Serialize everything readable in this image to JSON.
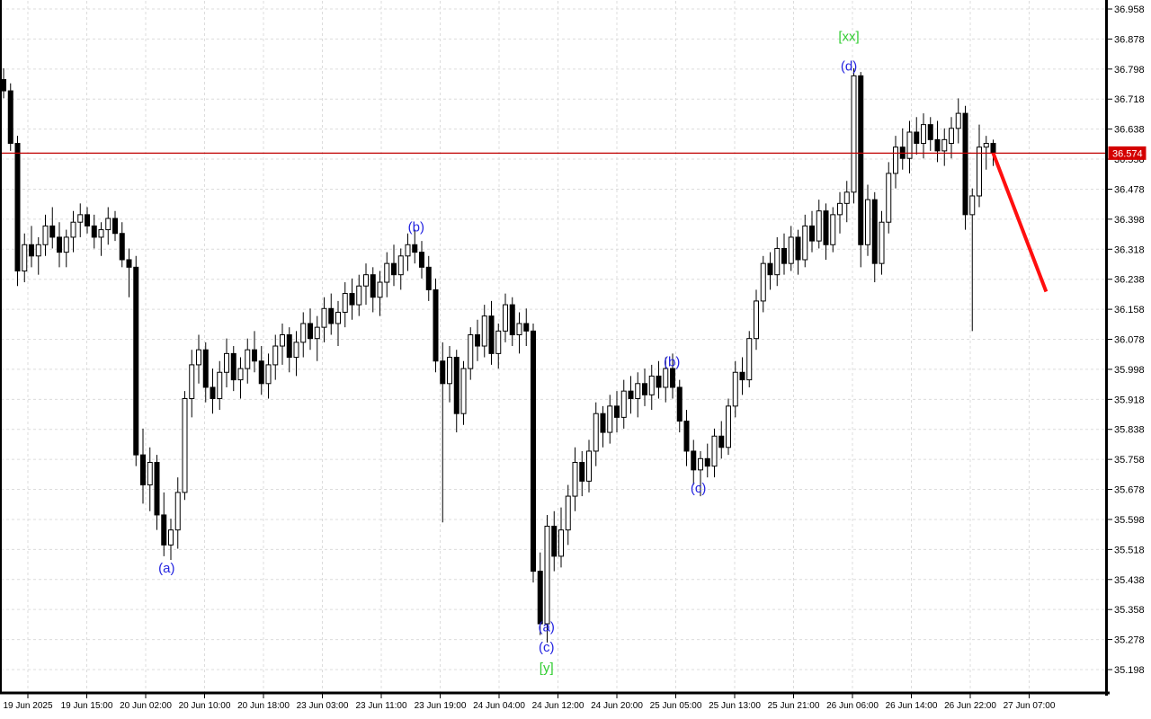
{
  "chart_data": {
    "type": "candlestick",
    "title": "",
    "grid": "on",
    "colors": {
      "background": "#ffffff",
      "grid": "#dcdcdc",
      "frame": "#000000",
      "bull_fill": "#ffffff",
      "bear_fill": "#000000",
      "candle_outline": "#000000",
      "bid_line": "#c00000",
      "tag_bg": "#d40000",
      "tag_text": "#ffffff",
      "trend_line": "#ff0f0f",
      "blue_label": "#2424e0",
      "green_label": "#32cd32"
    },
    "price_axis": {
      "min": 35.198,
      "max": 36.958,
      "step": 0.08,
      "ticks": [
        "36.958",
        "36.878",
        "36.798",
        "36.718",
        "36.638",
        "36.558",
        "36.478",
        "36.398",
        "36.318",
        "36.238",
        "36.158",
        "36.078",
        "35.998",
        "35.918",
        "35.838",
        "35.758",
        "35.678",
        "35.598",
        "35.518",
        "35.438",
        "35.358",
        "35.278",
        "35.198"
      ]
    },
    "time_axis": {
      "ticks": [
        "19 Jun 2025",
        "19 Jun 15:00",
        "20 Jun 02:00",
        "20 Jun 10:00",
        "20 Jun 18:00",
        "23 Jun 03:00",
        "23 Jun 11:00",
        "23 Jun 19:00",
        "24 Jun 04:00",
        "24 Jun 12:00",
        "24 Jun 20:00",
        "25 Jun 05:00",
        "25 Jun 13:00",
        "25 Jun 21:00",
        "26 Jun 06:00",
        "26 Jun 14:00",
        "26 Jun 22:00",
        "27 Jun 07:00"
      ]
    },
    "horizontal_line": {
      "price": 36.574,
      "label": "36.574"
    },
    "trend_line": {
      "from": {
        "index": 142,
        "price": 36.574
      },
      "to": {
        "index": 149.6,
        "price": 36.205
      },
      "width": 4
    },
    "annotations": [
      {
        "text": "(a)",
        "index": 23.4,
        "price": 35.468,
        "color": "blue"
      },
      {
        "text": "(b)",
        "index": 59.2,
        "price": 36.377,
        "color": "blue"
      },
      {
        "text": "(a)",
        "index": 77.9,
        "price": 35.312,
        "color": "blue"
      },
      {
        "text": "(c)",
        "index": 77.9,
        "price": 35.258,
        "color": "blue"
      },
      {
        "text": "[y]",
        "index": 77.9,
        "price": 35.203,
        "color": "green"
      },
      {
        "text": "(b)",
        "index": 95.9,
        "price": 36.018,
        "color": "blue"
      },
      {
        "text": "(c)",
        "index": 99.7,
        "price": 35.682,
        "color": "blue"
      },
      {
        "text": "(d)",
        "index": 121.3,
        "price": 36.806,
        "color": "blue"
      },
      {
        "text": "[xx]",
        "index": 121.3,
        "price": 36.885,
        "color": "green"
      }
    ],
    "candles": [
      [
        36.77,
        36.8,
        36.72,
        36.74
      ],
      [
        36.74,
        36.76,
        36.58,
        36.6
      ],
      [
        36.6,
        36.62,
        36.22,
        36.26
      ],
      [
        36.26,
        36.36,
        36.23,
        36.33
      ],
      [
        36.33,
        36.38,
        36.27,
        36.3
      ],
      [
        36.3,
        36.35,
        36.25,
        36.33
      ],
      [
        36.33,
        36.41,
        36.3,
        36.38
      ],
      [
        36.38,
        36.43,
        36.32,
        36.35
      ],
      [
        36.35,
        36.39,
        36.27,
        36.31
      ],
      [
        36.31,
        36.37,
        36.27,
        36.35
      ],
      [
        36.35,
        36.42,
        36.31,
        36.39
      ],
      [
        36.39,
        36.44,
        36.35,
        36.41
      ],
      [
        36.41,
        36.43,
        36.36,
        36.38
      ],
      [
        36.38,
        36.41,
        36.32,
        36.35
      ],
      [
        36.35,
        36.39,
        36.3,
        36.37
      ],
      [
        36.37,
        36.43,
        36.33,
        36.4
      ],
      [
        36.4,
        36.42,
        36.34,
        36.36
      ],
      [
        36.36,
        36.39,
        36.27,
        36.29
      ],
      [
        36.29,
        36.32,
        36.19,
        36.27
      ],
      [
        36.27,
        36.3,
        35.74,
        35.77
      ],
      [
        35.77,
        35.84,
        35.64,
        35.69
      ],
      [
        35.69,
        35.79,
        35.62,
        35.75
      ],
      [
        35.75,
        35.77,
        35.57,
        35.61
      ],
      [
        35.61,
        35.67,
        35.5,
        35.53
      ],
      [
        35.53,
        35.6,
        35.49,
        35.57
      ],
      [
        35.57,
        35.71,
        35.52,
        35.67
      ],
      [
        35.67,
        35.94,
        35.65,
        35.92
      ],
      [
        35.92,
        36.05,
        35.87,
        36.01
      ],
      [
        36.01,
        36.09,
        35.96,
        36.05
      ],
      [
        36.05,
        36.07,
        35.91,
        35.95
      ],
      [
        35.95,
        36.0,
        35.88,
        35.92
      ],
      [
        35.92,
        36.02,
        35.89,
        35.99
      ],
      [
        35.99,
        36.08,
        35.95,
        36.04
      ],
      [
        36.04,
        36.06,
        35.94,
        35.97
      ],
      [
        35.97,
        36.03,
        35.92,
        36.0
      ],
      [
        36.0,
        36.08,
        35.96,
        36.05
      ],
      [
        36.05,
        36.1,
        35.99,
        36.02
      ],
      [
        36.02,
        36.06,
        35.93,
        35.96
      ],
      [
        35.96,
        36.04,
        35.92,
        36.01
      ],
      [
        36.01,
        36.09,
        35.97,
        36.06
      ],
      [
        36.06,
        36.12,
        36.01,
        36.09
      ],
      [
        36.09,
        36.11,
        35.99,
        36.03
      ],
      [
        36.03,
        36.1,
        35.98,
        36.07
      ],
      [
        36.07,
        36.15,
        36.03,
        36.12
      ],
      [
        36.12,
        36.16,
        36.05,
        36.08
      ],
      [
        36.08,
        36.14,
        36.02,
        36.11
      ],
      [
        36.11,
        36.19,
        36.07,
        36.16
      ],
      [
        36.16,
        36.2,
        36.09,
        36.12
      ],
      [
        36.12,
        36.18,
        36.06,
        36.15
      ],
      [
        36.15,
        36.23,
        36.11,
        36.2
      ],
      [
        36.2,
        36.24,
        36.13,
        36.17
      ],
      [
        36.17,
        36.25,
        36.14,
        36.22
      ],
      [
        36.22,
        36.28,
        36.17,
        36.25
      ],
      [
        36.25,
        36.27,
        36.15,
        36.19
      ],
      [
        36.19,
        36.26,
        36.14,
        36.23
      ],
      [
        36.23,
        36.31,
        36.19,
        36.28
      ],
      [
        36.28,
        36.33,
        36.22,
        36.25
      ],
      [
        36.25,
        36.32,
        36.21,
        36.3
      ],
      [
        36.3,
        36.36,
        36.26,
        36.33
      ],
      [
        36.33,
        36.37,
        36.28,
        36.31
      ],
      [
        36.31,
        36.34,
        36.24,
        36.27
      ],
      [
        36.27,
        36.3,
        36.18,
        36.21
      ],
      [
        36.21,
        36.24,
        35.99,
        36.02
      ],
      [
        36.02,
        36.07,
        35.59,
        35.96
      ],
      [
        35.96,
        36.06,
        35.91,
        36.03
      ],
      [
        36.03,
        36.05,
        35.83,
        35.88
      ],
      [
        35.88,
        36.02,
        35.85,
        36.0
      ],
      [
        36.0,
        36.11,
        35.97,
        36.09
      ],
      [
        36.09,
        36.13,
        36.02,
        36.06
      ],
      [
        36.06,
        36.17,
        36.03,
        36.14
      ],
      [
        36.14,
        36.18,
        36.01,
        36.04
      ],
      [
        36.04,
        36.12,
        36.0,
        36.1
      ],
      [
        36.1,
        36.2,
        36.07,
        36.17
      ],
      [
        36.17,
        36.19,
        36.06,
        36.09
      ],
      [
        36.09,
        36.15,
        36.04,
        36.12
      ],
      [
        36.12,
        36.16,
        36.06,
        36.1
      ],
      [
        36.1,
        36.12,
        35.43,
        35.46
      ],
      [
        35.46,
        35.51,
        35.29,
        35.32
      ],
      [
        35.32,
        35.61,
        35.27,
        35.58
      ],
      [
        35.58,
        35.62,
        35.46,
        35.5
      ],
      [
        35.5,
        35.63,
        35.47,
        35.57
      ],
      [
        35.57,
        35.69,
        35.53,
        35.66
      ],
      [
        35.66,
        35.79,
        35.62,
        35.75
      ],
      [
        35.75,
        35.78,
        35.66,
        35.7
      ],
      [
        35.7,
        35.81,
        35.67,
        35.78
      ],
      [
        35.78,
        35.91,
        35.74,
        35.88
      ],
      [
        35.88,
        35.9,
        35.79,
        35.83
      ],
      [
        35.83,
        35.93,
        35.8,
        35.9
      ],
      [
        35.9,
        35.94,
        35.83,
        35.87
      ],
      [
        35.87,
        35.97,
        35.84,
        35.94
      ],
      [
        35.94,
        35.98,
        35.88,
        35.92
      ],
      [
        35.92,
        35.99,
        35.87,
        35.96
      ],
      [
        35.96,
        36.0,
        35.9,
        35.93
      ],
      [
        35.93,
        36.01,
        35.89,
        35.98
      ],
      [
        35.98,
        36.02,
        35.92,
        35.95
      ],
      [
        35.95,
        36.03,
        35.91,
        36.0
      ],
      [
        36.0,
        36.04,
        35.92,
        35.95
      ],
      [
        35.95,
        35.97,
        35.83,
        35.86
      ],
      [
        35.86,
        35.89,
        35.74,
        35.78
      ],
      [
        35.78,
        35.81,
        35.69,
        35.73
      ],
      [
        35.73,
        35.78,
        35.66,
        35.76
      ],
      [
        35.76,
        35.8,
        35.71,
        35.74
      ],
      [
        35.74,
        35.84,
        35.71,
        35.82
      ],
      [
        35.82,
        35.86,
        35.76,
        35.79
      ],
      [
        35.79,
        35.92,
        35.77,
        35.9
      ],
      [
        35.9,
        36.02,
        35.87,
        35.99
      ],
      [
        35.99,
        36.03,
        35.93,
        35.97
      ],
      [
        35.97,
        36.1,
        35.95,
        36.08
      ],
      [
        36.08,
        36.21,
        36.05,
        36.18
      ],
      [
        36.18,
        36.3,
        36.15,
        36.28
      ],
      [
        36.28,
        36.31,
        36.21,
        36.25
      ],
      [
        36.25,
        36.35,
        36.22,
        36.32
      ],
      [
        36.32,
        36.36,
        36.25,
        36.28
      ],
      [
        36.28,
        36.38,
        36.26,
        36.35
      ],
      [
        36.35,
        36.37,
        36.25,
        36.29
      ],
      [
        36.29,
        36.41,
        36.27,
        36.38
      ],
      [
        36.38,
        36.42,
        36.31,
        36.34
      ],
      [
        36.34,
        36.45,
        36.32,
        36.42
      ],
      [
        36.42,
        36.44,
        36.29,
        36.33
      ],
      [
        36.33,
        36.43,
        36.31,
        36.41
      ],
      [
        36.41,
        36.47,
        36.36,
        36.44
      ],
      [
        36.44,
        36.5,
        36.39,
        36.47
      ],
      [
        36.47,
        36.8,
        36.44,
        36.78
      ],
      [
        36.78,
        36.79,
        36.27,
        36.33
      ],
      [
        36.33,
        36.49,
        36.3,
        36.45
      ],
      [
        36.45,
        36.47,
        36.23,
        36.28
      ],
      [
        36.28,
        36.42,
        36.25,
        36.39
      ],
      [
        36.39,
        36.55,
        36.36,
        36.52
      ],
      [
        36.52,
        36.62,
        36.48,
        36.59
      ],
      [
        36.59,
        36.64,
        36.53,
        36.56
      ],
      [
        36.56,
        36.66,
        36.52,
        36.63
      ],
      [
        36.63,
        36.67,
        36.57,
        36.6
      ],
      [
        36.6,
        36.68,
        36.56,
        36.65
      ],
      [
        36.65,
        36.67,
        36.58,
        36.61
      ],
      [
        36.61,
        36.66,
        36.55,
        36.58
      ],
      [
        36.58,
        36.64,
        36.54,
        36.61
      ],
      [
        36.6,
        36.67,
        36.56,
        36.64
      ],
      [
        36.64,
        36.72,
        36.6,
        36.68
      ],
      [
        36.68,
        36.7,
        36.37,
        36.41
      ],
      [
        36.41,
        36.48,
        36.1,
        36.46
      ],
      [
        36.46,
        36.65,
        36.43,
        36.59
      ],
      [
        36.59,
        36.62,
        36.53,
        36.6
      ],
      [
        36.6,
        36.61,
        36.54,
        36.574
      ]
    ]
  }
}
